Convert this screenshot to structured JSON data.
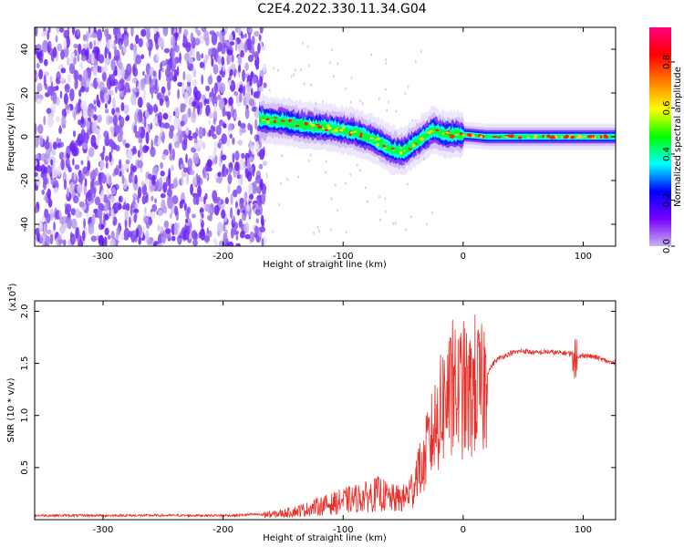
{
  "title": "C2E4.2022.330.11.34.G04",
  "chart_data": [
    {
      "type": "heatmap",
      "xlabel": "Height of straight line (km)",
      "ylabel": "Frequency (Hz)",
      "xlim": [
        -357,
        127
      ],
      "ylim": [
        -50,
        50
      ],
      "xticks": [
        -300,
        -200,
        -100,
        0,
        100
      ],
      "yticks": [
        -40,
        -20,
        0,
        20,
        40
      ],
      "xtick_labels": [
        "-300",
        "-200",
        "-100",
        "0",
        "100"
      ],
      "ytick_labels": [
        "-40",
        "-20",
        "0",
        "20",
        "40"
      ],
      "grid": false,
      "colorbar": {
        "label": "Normalized spectral amplitude",
        "range": [
          0.0,
          0.95
        ],
        "ticks": [
          0.0,
          0.2,
          0.4,
          0.6,
          0.8
        ],
        "tick_labels": [
          "0.0",
          "0.2",
          "0.4",
          "0.6",
          "0.8"
        ],
        "colors": [
          "#c8b4f0",
          "#7800ff",
          "#0000ff",
          "#00ffff",
          "#00ff00",
          "#ffff00",
          "#ff8000",
          "#ff0000",
          "#ff0080"
        ]
      },
      "noise_region_x": [
        -357,
        -165
      ],
      "signal_track": {
        "x": [
          -170,
          -150,
          -130,
          -110,
          -90,
          -75,
          -60,
          -50,
          -40,
          -30,
          -25,
          -15,
          0,
          20,
          60,
          100,
          127
        ],
        "y": [
          8,
          7,
          5,
          4,
          2,
          -1,
          -6,
          -7,
          -3,
          1,
          3,
          1,
          1,
          0,
          0,
          0,
          0
        ]
      }
    },
    {
      "type": "line",
      "xlabel": "Height of straight line (km)",
      "ylabel": "SNR (10 * v/v)",
      "y_multiplier_label": "(x10",
      "y_multiplier_exp": "4",
      "y_multiplier_close": ")",
      "xlim": [
        -357,
        127
      ],
      "ylim": [
        0.0,
        2.1
      ],
      "xticks": [
        -300,
        -200,
        -100,
        0,
        100
      ],
      "yticks": [
        0.5,
        1.0,
        1.5,
        2.0
      ],
      "xtick_labels": [
        "-300",
        "-200",
        "-100",
        "0",
        "100"
      ],
      "ytick_labels": [
        "0.5",
        "1.0",
        "1.5",
        "2.0"
      ],
      "grid": false,
      "series": [
        {
          "color": "#e8302a",
          "x": [
            -357,
            -330,
            -300,
            -270,
            -240,
            -210,
            -190,
            -175,
            -160,
            -150,
            -140,
            -130,
            -120,
            -110,
            -100,
            -90,
            -80,
            -70,
            -60,
            -50,
            -42,
            -38,
            -34,
            -30,
            -26,
            -22,
            -18,
            -14,
            -10,
            -6,
            0,
            5,
            10,
            15,
            20,
            25,
            30,
            40,
            50,
            60,
            70,
            80,
            90,
            95,
            100,
            110,
            120,
            127
          ],
          "y": [
            0.04,
            0.04,
            0.04,
            0.04,
            0.04,
            0.04,
            0.04,
            0.05,
            0.05,
            0.06,
            0.08,
            0.1,
            0.13,
            0.15,
            0.18,
            0.2,
            0.22,
            0.25,
            0.2,
            0.2,
            0.3,
            0.5,
            0.45,
            0.7,
            0.8,
            0.95,
            1.05,
            1.2,
            1.15,
            1.2,
            1.25,
            1.15,
            1.3,
            1.2,
            1.4,
            1.5,
            1.55,
            1.6,
            1.62,
            1.6,
            1.61,
            1.6,
            1.6,
            1.55,
            1.58,
            1.56,
            1.52,
            1.5
          ]
        }
      ]
    }
  ]
}
